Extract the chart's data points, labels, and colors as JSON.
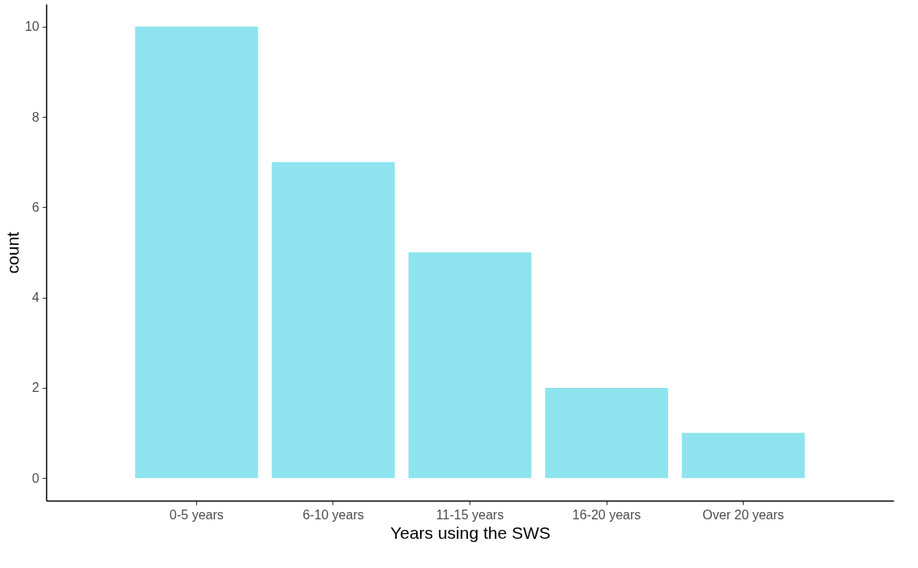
{
  "chart_data": {
    "type": "bar",
    "xlabel": "Years using the SWS",
    "ylabel": "count",
    "categories": [
      "0-5 years",
      "6-10 years",
      "11-15 years",
      "16-20 years",
      "Over 20 years"
    ],
    "values": [
      10,
      7,
      5,
      2,
      1
    ],
    "color": "#8ee4ee",
    "ylim": [
      -0.5,
      10.5
    ],
    "yticks": [
      0,
      2,
      4,
      6,
      8,
      10
    ],
    "grid": false
  }
}
